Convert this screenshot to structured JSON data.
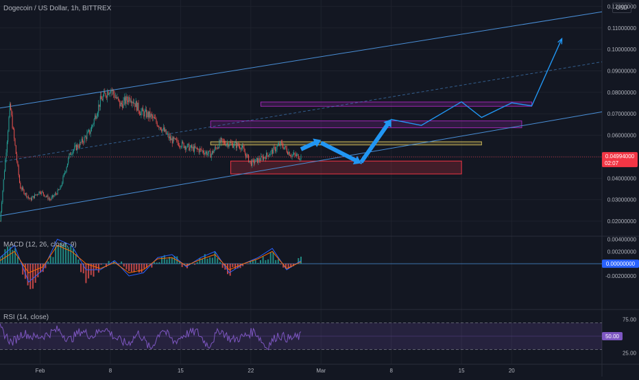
{
  "header": {
    "title": "Dogecoin / US Dollar, 1h, BITTREX",
    "currency": "USD",
    "macd_label": "MACD (12, 26, close, 9)",
    "rsi_label": "RSI (14, close)"
  },
  "colors": {
    "background": "#131722",
    "grid": "#1e222d",
    "bull": "#26a69a",
    "bear": "#ef5350",
    "channel": "#4a90d9",
    "arrow": "#2196f3",
    "macd_line": "#2962ff",
    "signal_line": "#ff6d00",
    "rsi_line": "#7e57c2",
    "price_badge": "#f23645"
  },
  "chart_data": [
    {
      "type": "candlestick",
      "pane": "price",
      "title": "Dogecoin / US Dollar, 1h, BITTREX",
      "scale": "linear",
      "ylim": [
        0.013,
        0.123
      ],
      "y_ticks": [
        "0.12000000",
        "0.11000000",
        "0.10000000",
        "0.09000000",
        "0.08000000",
        "0.07000000",
        "0.06000000",
        "0.05000000",
        "0.04000000",
        "0.03000000",
        "0.02000000"
      ],
      "x_ticks": [
        "Feb",
        "8",
        "15",
        "22",
        "Mar",
        "8",
        "15",
        "20"
      ],
      "last_price": "0.04994000",
      "countdown": "02:07",
      "price_path": [
        [
          "Jan 28",
          0.02
        ],
        [
          "Jan 29",
          0.074
        ],
        [
          "Jan 30",
          0.036
        ],
        [
          "Jan 31",
          0.03
        ],
        [
          "Feb 1",
          0.034
        ],
        [
          "Feb 2",
          0.03
        ],
        [
          "Feb 3",
          0.035
        ],
        [
          "Feb 4",
          0.052
        ],
        [
          "Feb 5",
          0.056
        ],
        [
          "Feb 6",
          0.062
        ],
        [
          "Feb 7",
          0.076
        ],
        [
          "Feb 8",
          0.082
        ],
        [
          "Feb 9",
          0.074
        ],
        [
          "Feb 10",
          0.078
        ],
        [
          "Feb 11",
          0.071
        ],
        [
          "Feb 12",
          0.069
        ],
        [
          "Feb 13",
          0.064
        ],
        [
          "Feb 14",
          0.058
        ],
        [
          "Feb 15",
          0.056
        ],
        [
          "Feb 16",
          0.054
        ],
        [
          "Feb 17",
          0.053
        ],
        [
          "Feb 18",
          0.051
        ],
        [
          "Feb 19",
          0.057
        ],
        [
          "Feb 20",
          0.056
        ],
        [
          "Feb 21",
          0.055
        ],
        [
          "Feb 22",
          0.047
        ],
        [
          "Feb 23",
          0.049
        ],
        [
          "Feb 24",
          0.052
        ],
        [
          "Feb 25",
          0.056
        ],
        [
          "Feb 26",
          0.051
        ],
        [
          "Feb 27",
          0.05
        ]
      ],
      "channel_lines": [
        {
          "from": [
            "Jan 28",
            0.0727
          ],
          "to": [
            "Mar 29",
            0.1175
          ],
          "style": "solid"
        },
        {
          "from": [
            "Jan 28",
            0.0225
          ],
          "to": [
            "Mar 29",
            0.0709
          ],
          "style": "solid"
        },
        {
          "from": [
            "Jan 28",
            0.0476
          ],
          "to": [
            "Mar 29",
            0.0942
          ],
          "style": "dashed"
        }
      ],
      "zones": [
        {
          "name": "upper purple zone",
          "from": "Feb 23",
          "to": "Mar 22",
          "price_range": [
            0.0735,
            0.0755
          ],
          "color": "#9c27b0"
        },
        {
          "name": "middle purple zone",
          "from": "Feb 18",
          "to": "Mar 21",
          "price_range": [
            0.0635,
            0.0667
          ],
          "color": "#9c27b0"
        },
        {
          "name": "yellow zone",
          "from": "Feb 18",
          "to": "Mar 17",
          "price_range": [
            0.0555,
            0.057
          ],
          "color": "#c9b458"
        },
        {
          "name": "red zone",
          "from": "Feb 20",
          "to": "Mar 15",
          "price_range": [
            0.042,
            0.048
          ],
          "color": "#f23645"
        }
      ],
      "projection_path": [
        [
          "Mar 1",
          0.0567
        ],
        [
          "Mar 5",
          0.0468
        ],
        [
          "Mar 8",
          0.0674
        ],
        [
          "Mar 11",
          0.0646
        ],
        [
          "Mar 15",
          0.0756
        ],
        [
          "Mar 17",
          0.0683
        ],
        [
          "Mar 20",
          0.0751
        ],
        [
          "Mar 22",
          0.0737
        ],
        [
          "Mar 25",
          0.105
        ]
      ]
    },
    {
      "type": "histogram",
      "pane": "macd",
      "title": "MACD (12, 26, close, 9)",
      "ylim": [
        -0.0075,
        0.0045
      ],
      "y_ticks": [
        "0.00400000",
        "0.00200000",
        "-0.00200000"
      ],
      "zero_label": "0.00000000",
      "series": [
        {
          "name": "MACD",
          "values": [
            0.001,
            0.003,
            -0.003,
            -0.001,
            0.004,
            0.003,
            -0.001,
            -0.001,
            0.0005,
            -0.002,
            -0.0015,
            0.001,
            0.0015,
            -0.0005,
            0.001,
            0.002,
            -0.0015,
            0.0,
            0.001,
            0.0025,
            -0.001,
            0.0005
          ]
        },
        {
          "name": "Signal",
          "values": [
            0.0005,
            0.002,
            -0.0015,
            -0.0005,
            0.003,
            0.002,
            0.0,
            -0.0008,
            0.0002,
            -0.0015,
            -0.001,
            0.0008,
            0.001,
            -0.0003,
            0.0007,
            0.0015,
            -0.001,
            0.0,
            0.0008,
            0.002,
            -0.0008,
            0.0003
          ]
        }
      ]
    },
    {
      "type": "line",
      "pane": "rsi",
      "title": "RSI (14, close)",
      "ylim": [
        10,
        90
      ],
      "y_ticks": [
        "75.00",
        "25.00"
      ],
      "current_label": "50.00",
      "band": [
        30,
        70
      ],
      "series": [
        {
          "name": "RSI",
          "values": [
            62,
            40,
            55,
            48,
            52,
            60,
            44,
            58,
            50,
            63,
            47,
            38,
            55,
            30,
            62,
            41,
            53,
            57,
            35,
            60,
            44,
            49,
            58,
            33,
            52,
            46,
            50
          ]
        }
      ]
    }
  ]
}
